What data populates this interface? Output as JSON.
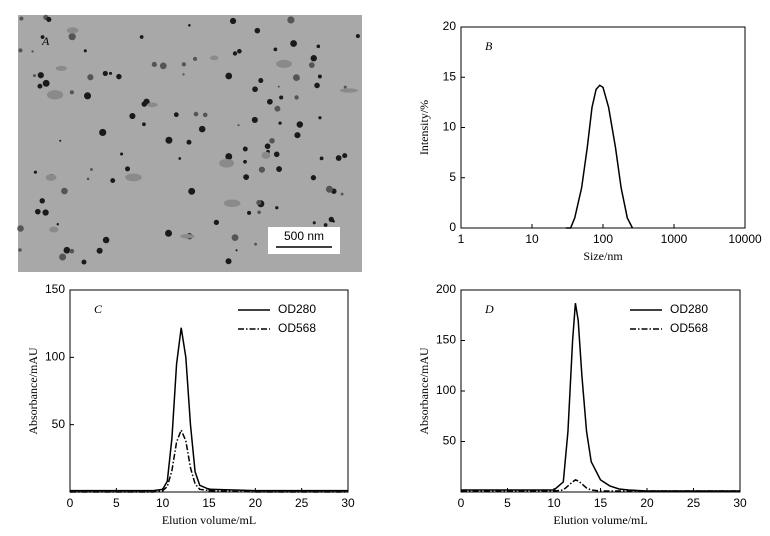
{
  "panel_a": {
    "label": "A",
    "scale_bar": "500 nm"
  },
  "chart_data": [
    {
      "type": "line",
      "panel_label": "B",
      "xlabel": "Size/nm",
      "ylabel": "Intensity/%",
      "log_x": true,
      "x": [
        30,
        35,
        40,
        50,
        60,
        70,
        80,
        90,
        100,
        120,
        150,
        180,
        220,
        260
      ],
      "values": [
        0,
        0,
        1,
        4,
        8,
        12,
        13.8,
        14.2,
        14,
        12,
        8,
        4,
        1,
        0
      ],
      "color": "#000000",
      "xlim": [
        1,
        10000
      ],
      "xticks": [
        1,
        10,
        100,
        1000,
        10000
      ],
      "ylim": [
        0,
        20
      ],
      "yticks": [
        0,
        5,
        10,
        15,
        20
      ]
    },
    {
      "type": "line",
      "panel_label": "C",
      "xlabel": "Elution volume/mL",
      "ylabel": "Absorbance/mAU",
      "x": [
        0,
        5,
        9,
        10,
        10.5,
        11,
        11.5,
        12,
        12.5,
        13,
        13.5,
        14,
        15,
        20,
        30
      ],
      "series": [
        {
          "name": "OD280",
          "color": "#000000",
          "style": "solid",
          "values": [
            1,
            1,
            1,
            2,
            8,
            40,
            95,
            122,
            100,
            50,
            15,
            5,
            2,
            1,
            1
          ]
        },
        {
          "name": "OD568",
          "color": "#000000",
          "style": "dashdot",
          "values": [
            0,
            0,
            0,
            1,
            4,
            16,
            37,
            46,
            38,
            18,
            6,
            2,
            1,
            0,
            0
          ]
        }
      ],
      "xlim": [
        0,
        30
      ],
      "xticks": [
        0,
        5,
        10,
        15,
        20,
        25,
        30
      ],
      "ylim": [
        0,
        150
      ],
      "yticks": [
        50,
        100,
        150
      ],
      "legend": "upper-right"
    },
    {
      "type": "line",
      "panel_label": "D",
      "xlabel": "Elution volume/mL",
      "ylabel": "Absorbance/mAU",
      "x": [
        0,
        5,
        10,
        11,
        11.5,
        12,
        12.3,
        12.6,
        13,
        13.5,
        14,
        15,
        16,
        17,
        18,
        20,
        30
      ],
      "series": [
        {
          "name": "OD280",
          "color": "#000000",
          "style": "solid",
          "values": [
            2,
            2,
            2,
            10,
            60,
            150,
            187,
            170,
            115,
            60,
            30,
            12,
            6,
            3,
            2,
            1,
            1
          ]
        },
        {
          "name": "OD568",
          "color": "#000000",
          "style": "dashdot",
          "values": [
            1,
            1,
            1,
            2,
            6,
            10,
            12,
            11,
            8,
            4,
            2,
            1,
            1,
            1,
            1,
            1,
            1
          ]
        }
      ],
      "xlim": [
        0,
        30
      ],
      "xticks": [
        0,
        5,
        10,
        15,
        20,
        25,
        30
      ],
      "ylim": [
        0,
        200
      ],
      "yticks": [
        50,
        100,
        150,
        200
      ],
      "legend": "upper-right"
    }
  ]
}
